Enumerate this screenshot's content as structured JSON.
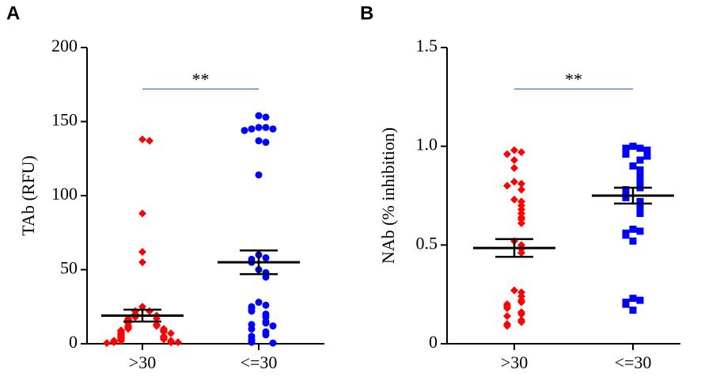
{
  "chart_data": [
    {
      "type": "dot",
      "panel": "A",
      "ylabel": "TAb (RFU)",
      "annotation": "**",
      "categories": [
        ">30",
        "<=30"
      ],
      "colors": [
        "#ff0000",
        "#0000ff"
      ],
      "markers": [
        "diamond",
        "circle"
      ],
      "values": [
        [
          138,
          137,
          88,
          62,
          55,
          25,
          22,
          22,
          20,
          19,
          18,
          17,
          17,
          16,
          15,
          14,
          13,
          12,
          12,
          11,
          10,
          10,
          9,
          9,
          8,
          8,
          7,
          7,
          6,
          5,
          5,
          4,
          4,
          3,
          3,
          2,
          2,
          2,
          1,
          1,
          1,
          0.5
        ],
        [
          154,
          153,
          146,
          146,
          145,
          145,
          144,
          137,
          136,
          114,
          60,
          58,
          57,
          55,
          50,
          48,
          45,
          28,
          26,
          25,
          24,
          22,
          20,
          18,
          15,
          14,
          13,
          12,
          10,
          8,
          6,
          5,
          3,
          2,
          1,
          0.5
        ]
      ],
      "means": [
        19,
        55
      ],
      "sems": [
        4,
        8
      ],
      "ylim": [
        0,
        200
      ],
      "yticks": [
        0,
        50,
        100,
        150,
        200
      ]
    },
    {
      "type": "dot",
      "panel": "B",
      "ylabel": "NAb (% inhibition)",
      "annotation": "**",
      "categories": [
        ">30",
        "<=30"
      ],
      "colors": [
        "#ff0000",
        "#0000ff"
      ],
      "markers": [
        "diamond",
        "square"
      ],
      "values": [
        [
          0.98,
          0.97,
          0.96,
          0.93,
          0.89,
          0.82,
          0.81,
          0.8,
          0.78,
          0.73,
          0.72,
          0.7,
          0.68,
          0.66,
          0.64,
          0.63,
          0.61,
          0.52,
          0.5,
          0.48,
          0.46,
          0.27,
          0.26,
          0.24,
          0.22,
          0.21,
          0.2,
          0.19,
          0.18,
          0.16,
          0.15,
          0.14,
          0.12,
          0.11,
          0.1,
          0.09
        ],
        [
          1.0,
          0.99,
          0.99,
          0.98,
          0.97,
          0.96,
          0.96,
          0.95,
          0.93,
          0.9,
          0.88,
          0.87,
          0.85,
          0.84,
          0.82,
          0.8,
          0.79,
          0.78,
          0.77,
          0.76,
          0.75,
          0.74,
          0.72,
          0.7,
          0.68,
          0.66,
          0.58,
          0.57,
          0.56,
          0.55,
          0.52,
          0.23,
          0.22,
          0.21,
          0.2,
          0.17
        ]
      ],
      "means": [
        0.485,
        0.75
      ],
      "sems": [
        0.045,
        0.04
      ],
      "ylim": [
        0,
        1.5
      ],
      "yticks": [
        0,
        0.5,
        {
          "value": 1.0,
          "label": "1.0"
        },
        1.5
      ]
    }
  ]
}
